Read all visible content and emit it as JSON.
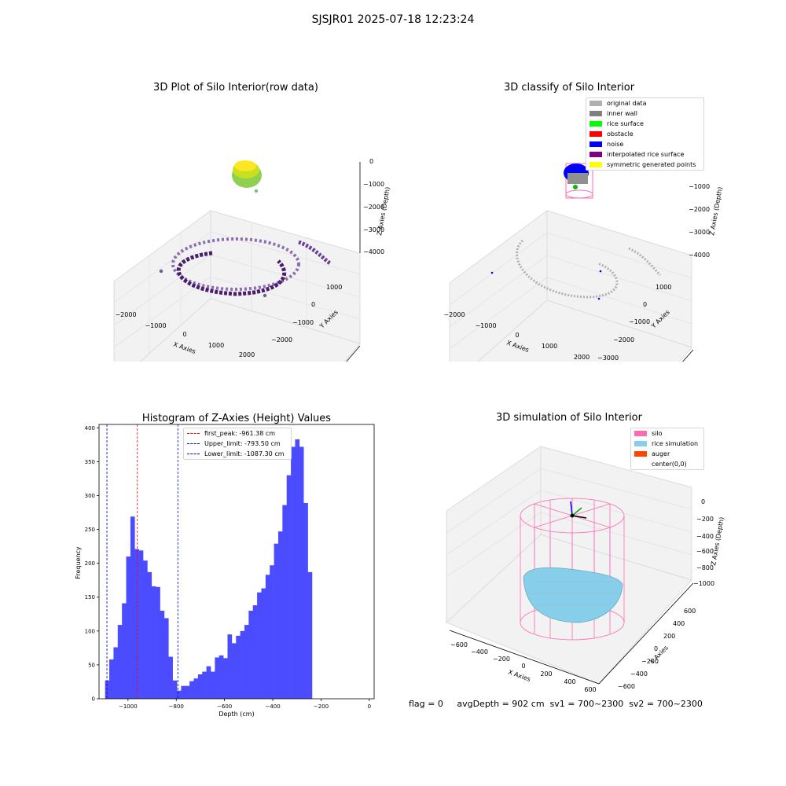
{
  "figure_title": "SJSJR01 2025-07-18 12:23:24",
  "panels": {
    "raw": {
      "title": "3D Plot of Silo Interior(row data)",
      "x_label": "X Axies",
      "y_label": "Y Axies",
      "z_label": "Z Axies (Depth)",
      "x_ticks": [
        "−2000",
        "−1000",
        "0",
        "1000",
        "2000"
      ],
      "y_ticks": [
        "1000",
        "0",
        "−1000",
        "−2000"
      ],
      "z_ticks": [
        "0",
        "−1000",
        "−2000",
        "−3000",
        "−4000"
      ]
    },
    "classify": {
      "title": "3D classify of Silo Interior",
      "x_label": "X Axies",
      "y_label": "Y Axies",
      "z_label": "Z Axies (Depth)",
      "x_ticks": [
        "−2000",
        "−1000",
        "0",
        "1000",
        "2000"
      ],
      "y_ticks": [
        "1000",
        "0",
        "−1000",
        "−2000",
        "−3000"
      ],
      "z_ticks": [
        "0",
        "−1000",
        "−2000",
        "−3000",
        "−4000"
      ],
      "legend": [
        {
          "label": "original data",
          "color": "#b0b0b0"
        },
        {
          "label": "inner wall",
          "color": "#808080"
        },
        {
          "label": "rice surface",
          "color": "#00ff00"
        },
        {
          "label": "obstacle",
          "color": "#ff0000"
        },
        {
          "label": "noise",
          "color": "#0000ff"
        },
        {
          "label": "interpolated rice surface",
          "color": "#800080"
        },
        {
          "label": "symmetric generated points",
          "color": "#ffff00"
        }
      ]
    },
    "simulation": {
      "title": "3D simulation of Silo Interior",
      "x_label": "X Axies",
      "y_label": "Y Axies",
      "z_label": "Z Axies (Depth)",
      "x_ticks": [
        "−600",
        "−400",
        "−200",
        "0",
        "200",
        "400",
        "600"
      ],
      "y_ticks": [
        "600",
        "400",
        "200",
        "0",
        "−200",
        "−400",
        "−600"
      ],
      "z_ticks": [
        "0",
        "−200",
        "−400",
        "−600",
        "−800",
        "−1000"
      ],
      "legend": [
        {
          "label": "silo",
          "color": "#ff69b4"
        },
        {
          "label": "rice simulation",
          "color": "#87ceeb"
        },
        {
          "label": "auger",
          "color": "#ff4500"
        },
        {
          "label": "center(0,0)",
          "color": "#ffffff"
        }
      ]
    }
  },
  "status_text": "flag = 0     avgDepth = 902 cm  sv1 = 700~2300  sv2 = 700~2300",
  "chart_data": {
    "type": "bar",
    "title": "Histogram of Z-Axies (Height) Values",
    "xlabel": "Depth (cm)",
    "ylabel": "Frequency",
    "xlim": [
      -1120,
      20
    ],
    "ylim": [
      0,
      405
    ],
    "x_ticks": [
      -1000,
      -800,
      -600,
      -400,
      -200,
      0
    ],
    "y_ticks": [
      0,
      50,
      100,
      150,
      200,
      250,
      300,
      350,
      400
    ],
    "bin_start": -1095,
    "bin_width": 17.5,
    "bar_color": "#4b4bff",
    "values": [
      27,
      58,
      76,
      109,
      141,
      210,
      269,
      221,
      219,
      204,
      187,
      166,
      165,
      130,
      119,
      62,
      27,
      12,
      19,
      19,
      26,
      30,
      36,
      40,
      48,
      40,
      61,
      64,
      60,
      95,
      82,
      93,
      100,
      109,
      130,
      138,
      157,
      163,
      183,
      197,
      229,
      247,
      286,
      330,
      372,
      383,
      372,
      289,
      187
    ],
    "reference_lines": [
      {
        "label": "first_peak: -961.38 cm",
        "value": -961.38,
        "color": "#ff0000"
      },
      {
        "label": "Upper_limit: -793.50 cm",
        "value": -793.5,
        "color": "#0000cc"
      },
      {
        "label": "Lower_limit: -1087.30 cm",
        "value": -1087.3,
        "color": "#0000cc"
      }
    ],
    "legend_position": "top-center"
  }
}
